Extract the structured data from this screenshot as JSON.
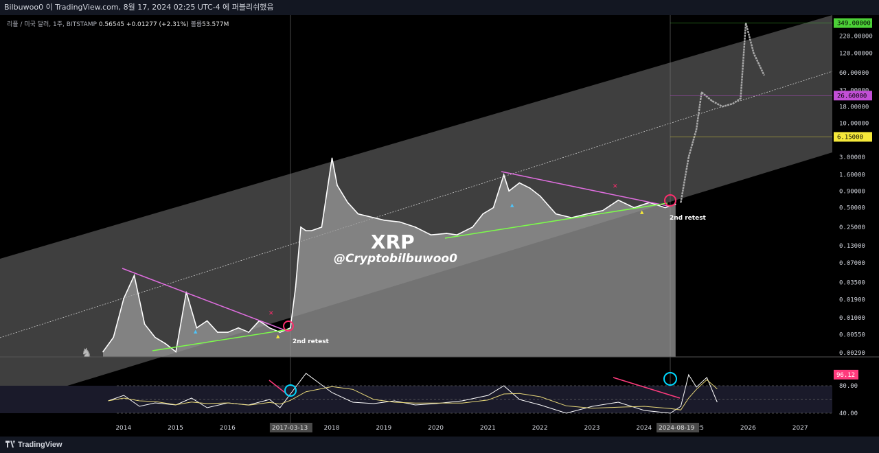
{
  "header": {
    "publish_text": "Bilbuwoo0 이 TradingView.com, 8월 17, 2024 02:25 UTC-4 에 퍼블리쉬했음"
  },
  "legend": {
    "symbol": "리플 / 미국 달러, 1주, BITSTAMP",
    "price": "0.56545",
    "change": "+0.01277 (+2.31%)",
    "volume_label": "볼륨",
    "volume": "53.577M"
  },
  "footer": {
    "brand": "TradingView"
  },
  "colors": {
    "background": "#000000",
    "channel_fill": "#4a4a4a",
    "area_fill": "#9a9a9a",
    "price_line": "#ffffff",
    "resistance_line": "#e06ee0",
    "support_line": "#7cfc4a",
    "marker_red": "#ff2d6d",
    "marker_cyan": "#00d8ff",
    "rsi_line": "#ffffff",
    "rsi_ma": "#e8d879",
    "label_green": "#4cd137",
    "label_purple": "#c24fd6",
    "label_yellow": "#f5e83a",
    "label_pink": "#ff3b7d"
  },
  "chart_data": [
    {
      "type": "line",
      "title": "XRP",
      "subtitle": "@Cryptobilbuwoo0",
      "yscale": "log",
      "x_ticks": [
        "2014",
        "2015",
        "2016",
        "2017",
        "2018",
        "2019",
        "2020",
        "2021",
        "2022",
        "2023",
        "2024",
        "2025",
        "2026",
        "2027"
      ],
      "y_ticks": [
        "220.00000",
        "120.00000",
        "60.00000",
        "32.00000",
        "18.00000",
        "10.00000",
        "3.00000",
        "1.60000",
        "0.90000",
        "0.50000",
        "0.25000",
        "0.13000",
        "0.07000",
        "0.03500",
        "0.01900",
        "0.01000",
        "0.00550",
        "0.00290"
      ],
      "price_labels": [
        {
          "value": "349.00000",
          "color": "#4cd137"
        },
        {
          "value": "26.60000",
          "color": "#c24fd6"
        },
        {
          "value": "6.15000",
          "color": "#f5e83a"
        }
      ],
      "date_labels": [
        "2017-03-13",
        "2024-08-19"
      ],
      "annotations": [
        "2nd retest",
        "2nd retest"
      ],
      "series": [
        {
          "x": [
            2013.6,
            2013.8,
            2014.0,
            2014.2,
            2014.4,
            2014.6,
            2014.8,
            2015.0,
            2015.2,
            2015.4,
            2015.6,
            2015.8,
            2016.0,
            2016.2,
            2016.4,
            2016.6,
            2016.8,
            2017.0,
            2017.2,
            2017.3,
            2017.4,
            2017.5,
            2017.6,
            2017.8,
            2018.0,
            2018.1,
            2018.3,
            2018.5,
            2018.8,
            2019.0,
            2019.3,
            2019.6,
            2019.9,
            2020.2,
            2020.4,
            2020.7,
            2020.9,
            2021.1,
            2021.3,
            2021.4,
            2021.6,
            2021.8,
            2022.0,
            2022.3,
            2022.6,
            2022.9,
            2023.2,
            2023.5,
            2023.8,
            2024.1,
            2024.4,
            2024.6
          ],
          "y": [
            0.003,
            0.005,
            0.02,
            0.045,
            0.008,
            0.005,
            0.004,
            0.003,
            0.025,
            0.007,
            0.009,
            0.006,
            0.006,
            0.007,
            0.006,
            0.009,
            0.007,
            0.006,
            0.007,
            0.03,
            0.25,
            0.22,
            0.22,
            0.25,
            2.9,
            1.1,
            0.6,
            0.4,
            0.35,
            0.32,
            0.3,
            0.25,
            0.19,
            0.2,
            0.19,
            0.25,
            0.4,
            0.5,
            1.6,
            0.9,
            1.2,
            1.0,
            0.75,
            0.4,
            0.35,
            0.4,
            0.45,
            0.65,
            0.5,
            0.6,
            0.5,
            0.565
          ]
        },
        {
          "x": [
            2024.7,
            2024.85,
            2025.0,
            2025.1,
            2025.3,
            2025.5,
            2025.7,
            2025.85,
            2025.95,
            2026.1,
            2026.3
          ],
          "y": [
            0.6,
            3.0,
            8.0,
            30.0,
            22.0,
            18.0,
            20.0,
            24.0,
            349.0,
            120.0,
            55.0
          ]
        }
      ]
    },
    {
      "type": "line",
      "title": "",
      "y_ticks": [
        "80.00",
        "40.00"
      ],
      "last_value": "96.12",
      "ylim": [
        20,
        110
      ],
      "x": [
        2013.7,
        2014.0,
        2014.3,
        2014.6,
        2015.0,
        2015.3,
        2015.6,
        2016.0,
        2016.4,
        2016.8,
        2017.0,
        2017.2,
        2017.5,
        2018.0,
        2018.4,
        2018.8,
        2019.2,
        2019.6,
        2020.0,
        2020.5,
        2021.0,
        2021.3,
        2021.6,
        2022.0,
        2022.5,
        2023.0,
        2023.5,
        2024.0,
        2024.5,
        2024.7,
        2024.85,
        2025.0,
        2025.2,
        2025.4
      ],
      "y": [
        58,
        66,
        50,
        55,
        52,
        62,
        48,
        55,
        52,
        60,
        48,
        68,
        98,
        70,
        56,
        54,
        58,
        52,
        54,
        58,
        66,
        80,
        60,
        52,
        40,
        50,
        56,
        44,
        40,
        50,
        96,
        78,
        92,
        56
      ]
    }
  ]
}
